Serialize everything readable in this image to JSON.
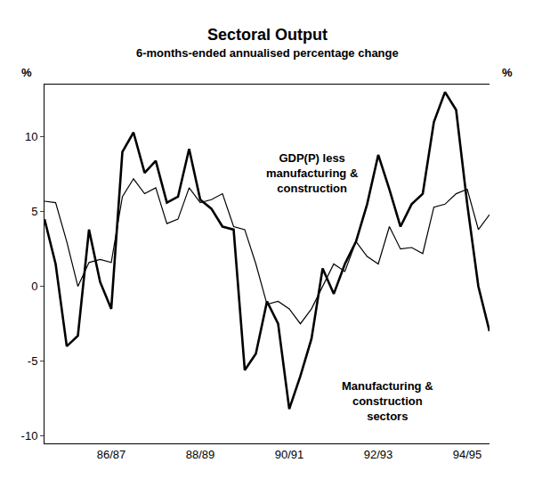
{
  "chart_data": {
    "type": "line",
    "title": "Sectoral Output",
    "subtitle": "6-months-ended annualised percentage change",
    "ylabel": "%",
    "y2label": "%",
    "categories": [
      null,
      null,
      null,
      null,
      null,
      null,
      "86/87",
      null,
      null,
      null,
      null,
      null,
      null,
      null,
      "88/89",
      null,
      null,
      null,
      null,
      null,
      null,
      null,
      "90/91",
      null,
      null,
      null,
      null,
      null,
      null,
      null,
      "92/93",
      null,
      null,
      null,
      null,
      null,
      null,
      null,
      "94/95",
      null,
      null
    ],
    "series": [
      {
        "name": "GDP(P) less\nmanufacturing &\nconstruction",
        "color": "#000000",
        "line_style": "thin",
        "values": [
          5.7,
          5.6,
          3.0,
          0.0,
          1.6,
          1.8,
          1.6,
          6.0,
          7.2,
          6.2,
          6.6,
          4.2,
          4.5,
          6.6,
          5.6,
          5.8,
          6.2,
          4.0,
          3.8,
          1.5,
          -1.2,
          -1.0,
          -1.5,
          -2.5,
          -1.5,
          0.0,
          1.5,
          1.0,
          3.0,
          2.0,
          1.5,
          4.0,
          2.5,
          2.6,
          2.2,
          5.3,
          5.5,
          6.2,
          6.5,
          3.8,
          4.8
        ]
      },
      {
        "name": "Manufacturing &\nconstruction\nsectors",
        "color": "#000000",
        "line_style": "thick",
        "values": [
          4.5,
          1.5,
          -4.0,
          -3.3,
          3.8,
          0.3,
          -1.5,
          9.0,
          10.3,
          7.6,
          8.4,
          5.6,
          6.0,
          9.2,
          5.8,
          5.2,
          4.0,
          3.8,
          -5.6,
          -4.5,
          -1.0,
          -2.5,
          -8.2,
          -6.0,
          -3.5,
          1.2,
          -0.5,
          1.5,
          3.0,
          5.5,
          8.8,
          6.5,
          4.0,
          5.5,
          6.2,
          11.0,
          13.0,
          11.8,
          5.5,
          0.0,
          -3.0
        ]
      }
    ],
    "ylim": [
      -10.5,
      13.5
    ],
    "yticks": [
      -10,
      -5,
      0,
      5,
      10
    ],
    "y2lim": [
      -10.5,
      13.5
    ],
    "y2ticks": [
      -10,
      -5,
      0,
      5,
      10
    ],
    "grid": false
  }
}
